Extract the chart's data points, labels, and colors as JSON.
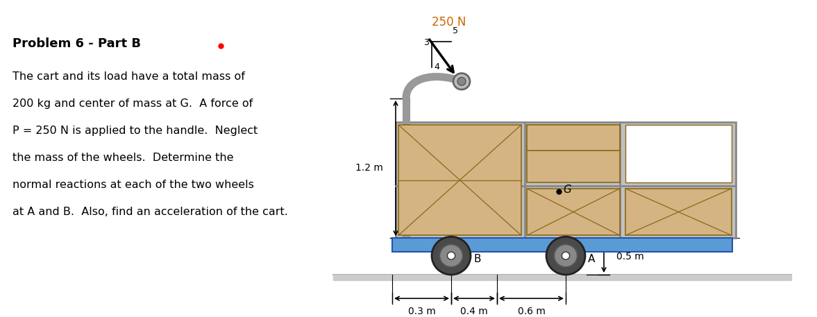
{
  "title": "Problem 6 - Part B",
  "problem_text_lines": [
    "The cart and its load have a total mass of",
    "200 kg and center of mass at G.  A force of",
    "P = 250 N is applied to the handle.  Neglect",
    "the mass of the wheels.  Determine the",
    "normal reactions at each of the two wheels",
    "at A and B.  Also, find an acceleration of the cart."
  ],
  "force_label": "250 N",
  "dim_12m": "1.2 m",
  "dim_03m": "0.3 m",
  "dim_04m": "0.4 m",
  "dim_06m": "0.6 m",
  "dim_05m": "0.5 m",
  "label_B": "B",
  "label_A": "A",
  "label_G": "G",
  "ratio_3": "3",
  "ratio_4": "4",
  "ratio_5": "5",
  "box_color": "#d4b483",
  "box_edge": "#8B6914",
  "frame_color": "#c0c0c0",
  "frame_edge": "#888888",
  "platform_color": "#5b9bd5",
  "platform_edge": "#2255aa",
  "wheel_outer": "#555555",
  "wheel_mid": "#888888",
  "wheel_inner": "#aaaaaa",
  "handle_color": "#999999",
  "bg_color": "#ffffff",
  "force_color": "#cc6600",
  "text_color": "#000000",
  "dim_color": "#000000"
}
